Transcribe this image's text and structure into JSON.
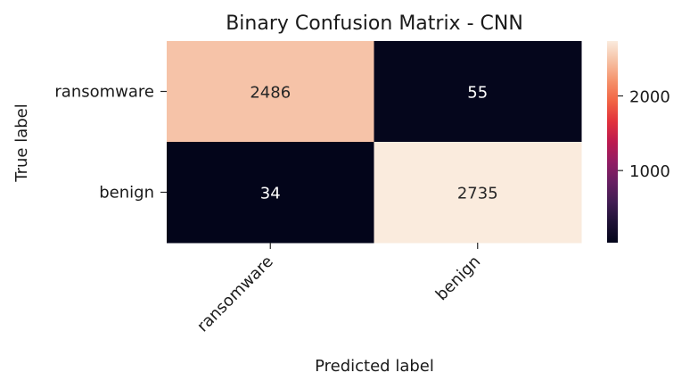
{
  "chart_data": {
    "type": "heatmap",
    "title": "Binary Confusion Matrix - CNN",
    "xlabel": "Predicted label",
    "ylabel": "True label",
    "x_categories": [
      "ransomware",
      "benign"
    ],
    "y_categories": [
      "ransomware",
      "benign"
    ],
    "values": [
      [
        2486,
        55
      ],
      [
        34,
        2735
      ]
    ],
    "colorbar": {
      "ticks": [
        1000,
        2000
      ],
      "range": [
        34,
        2735
      ],
      "colormap": "rocket"
    },
    "grid": false
  }
}
